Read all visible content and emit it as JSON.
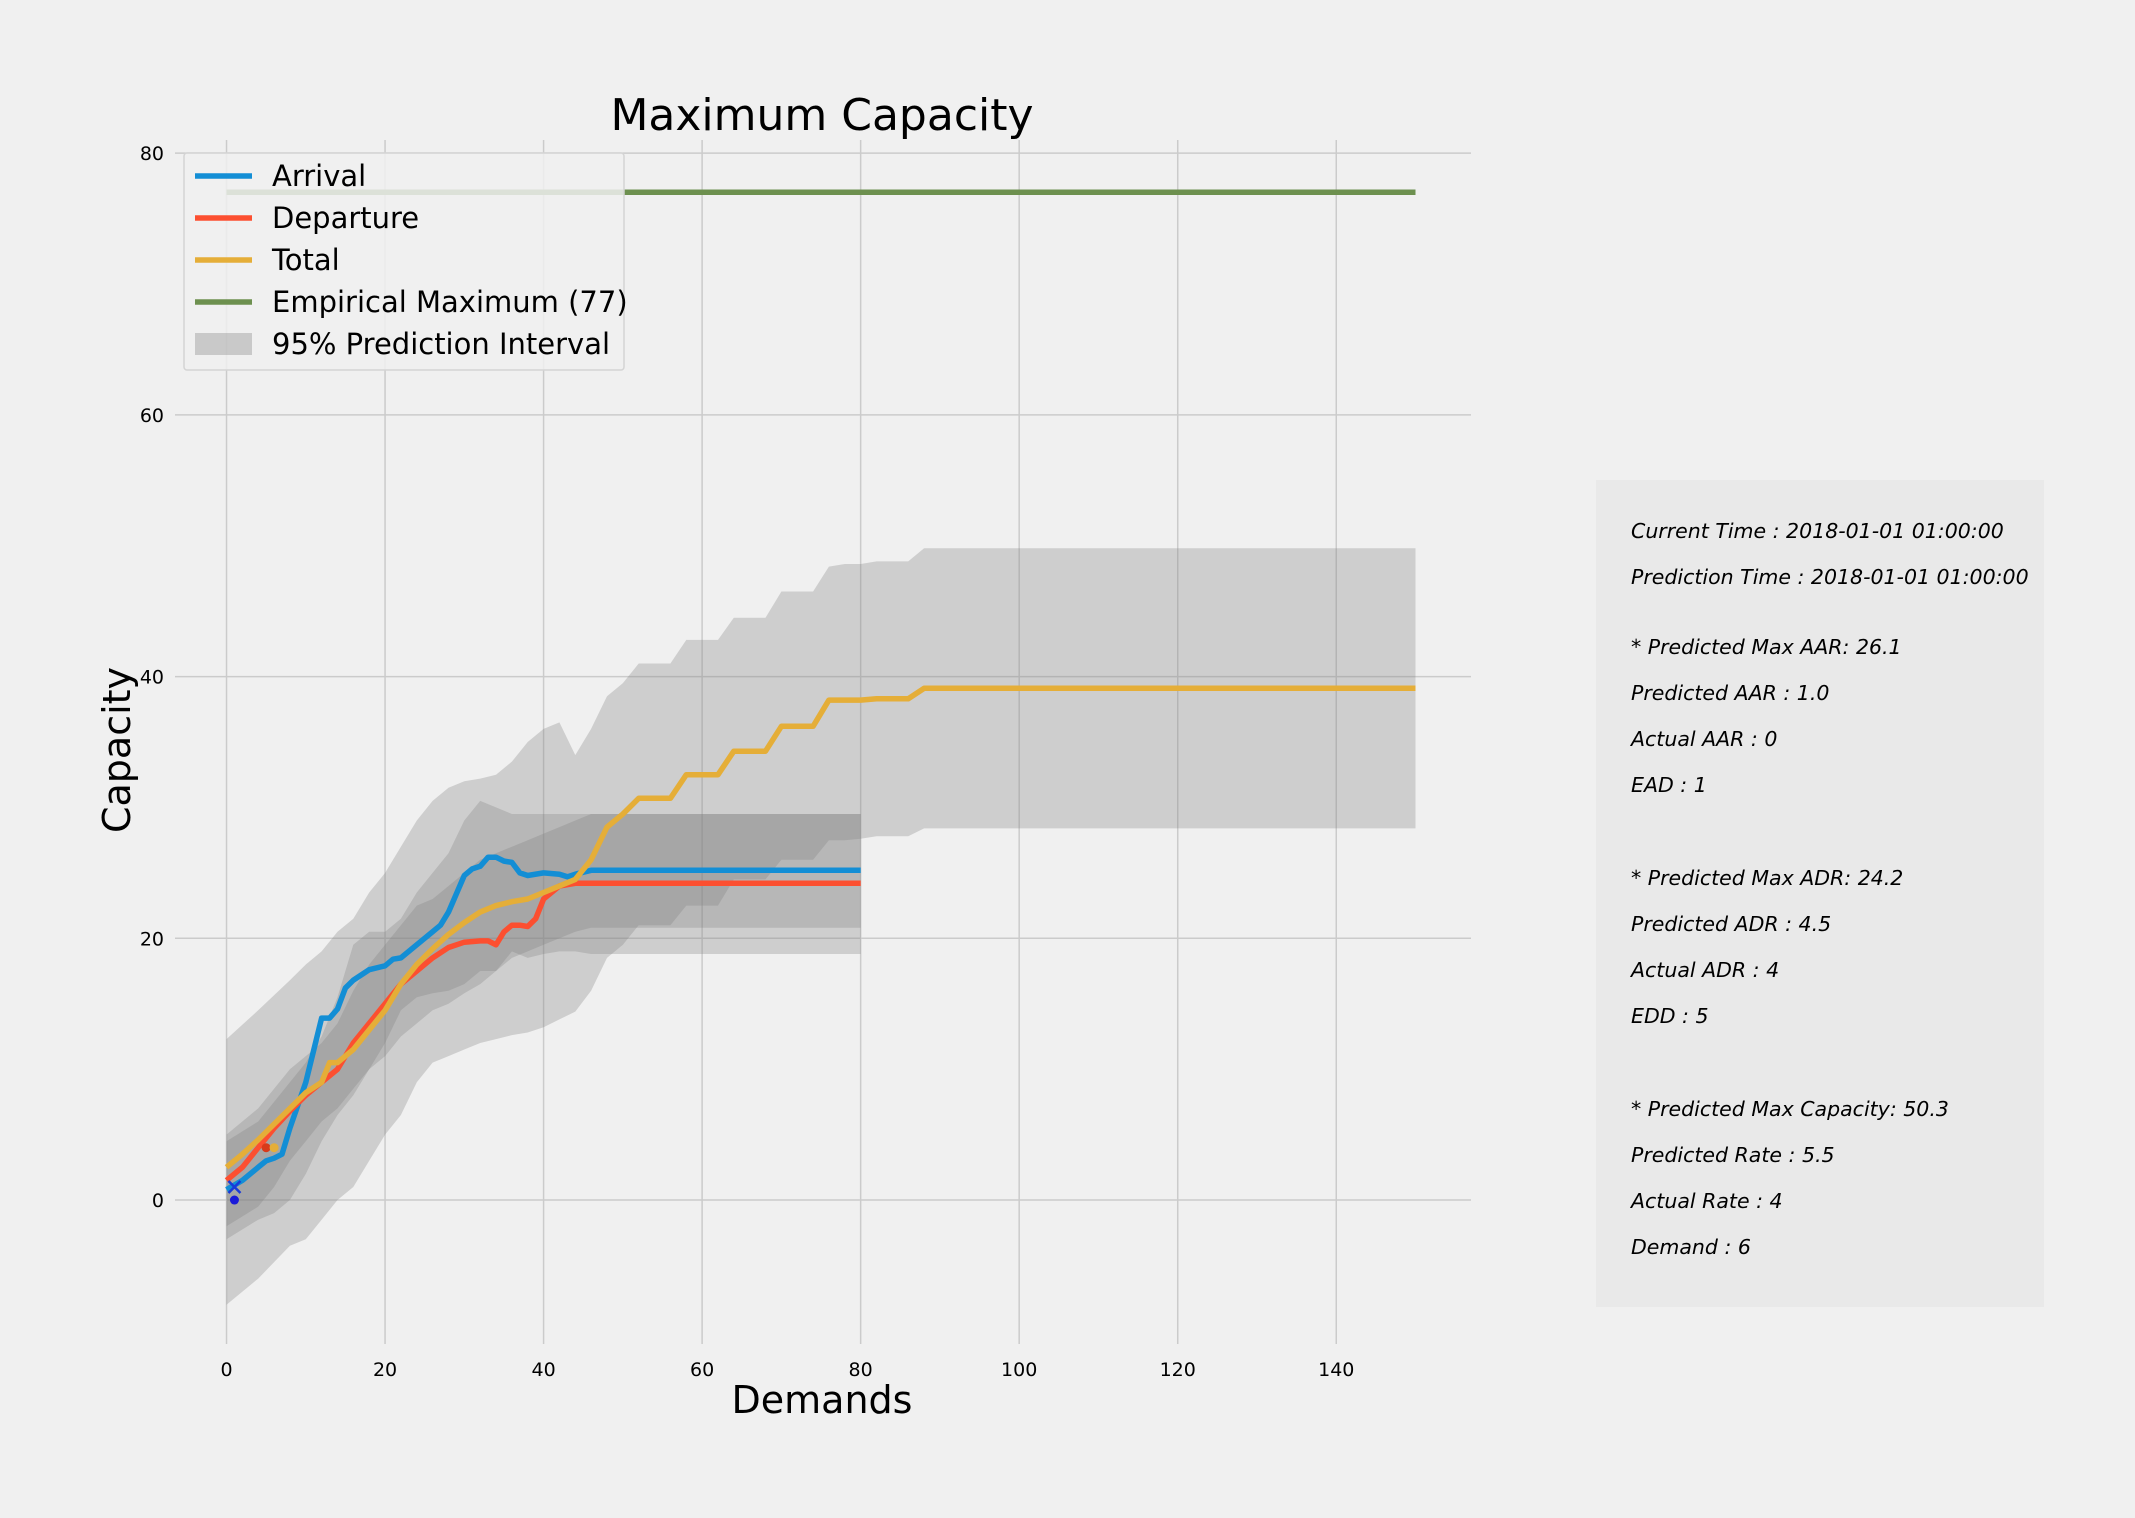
{
  "chart_data": {
    "type": "line",
    "title": "Maximum Capacity",
    "xlabel": "Demands",
    "ylabel": "Capacity",
    "xlim": [
      -6.5,
      157
    ],
    "ylim": [
      -11,
      81
    ],
    "xticks": [
      0,
      20,
      40,
      60,
      80,
      100,
      120,
      140
    ],
    "yticks": [
      0,
      20,
      40,
      60,
      80
    ],
    "grid": true,
    "legend_position": "top-left",
    "series": [
      {
        "name": "Arrival",
        "color": "#138ed5",
        "x": [
          0,
          2,
          4,
          5,
          6,
          7,
          8,
          10,
          12,
          13,
          14,
          15,
          16,
          18,
          20,
          21,
          22,
          24,
          26,
          27,
          28,
          30,
          31,
          32,
          33,
          34,
          35,
          36,
          37,
          38,
          40,
          42,
          43,
          44,
          46,
          80
        ],
        "y": [
          0.8,
          1.5,
          2.5,
          3,
          3.2,
          3.5,
          5.5,
          9,
          13.9,
          13.9,
          14.6,
          16.2,
          16.8,
          17.6,
          17.9,
          18.4,
          18.5,
          19.5,
          20.5,
          21,
          22,
          24.8,
          25.3,
          25.5,
          26.2,
          26.2,
          25.9,
          25.8,
          25,
          24.8,
          25,
          24.9,
          24.7,
          24.9,
          25.2,
          25.2
        ]
      },
      {
        "name": "Departure",
        "color": "#fc4f30",
        "x": [
          0,
          2,
          4,
          6,
          8,
          10,
          12,
          14,
          16,
          18,
          20,
          22,
          24,
          26,
          28,
          30,
          32,
          33,
          34,
          35,
          36,
          37,
          38,
          39,
          40,
          42,
          44,
          46,
          80
        ],
        "y": [
          1.5,
          2.5,
          4,
          5.5,
          6.8,
          8,
          9,
          10,
          12,
          13.5,
          15,
          16.5,
          17.5,
          18.5,
          19.3,
          19.7,
          19.8,
          19.8,
          19.5,
          20.5,
          21,
          21,
          20.9,
          21.5,
          23,
          24,
          24.2,
          24.2,
          24.2
        ]
      },
      {
        "name": "Total",
        "color": "#e5ae38",
        "x": [
          0,
          2,
          4,
          6,
          8,
          10,
          12,
          13,
          14,
          16,
          18,
          20,
          22,
          24,
          26,
          28,
          30,
          32,
          34,
          36,
          38,
          40,
          42,
          44,
          46,
          48,
          50,
          52,
          54,
          56,
          58,
          60,
          62,
          64,
          66,
          68,
          70,
          72,
          74,
          76,
          78,
          80,
          82,
          84,
          86,
          88,
          90,
          150
        ],
        "y": [
          2.5,
          3.5,
          4.6,
          5.8,
          7,
          8.2,
          9,
          10.5,
          10.5,
          11.5,
          13,
          14.5,
          16.5,
          18,
          19.2,
          20.3,
          21.2,
          22,
          22.5,
          22.8,
          23,
          23.5,
          24,
          24.5,
          26,
          28.5,
          29.5,
          30.7,
          30.7,
          30.7,
          32.5,
          32.5,
          32.5,
          34.3,
          34.3,
          34.3,
          36.2,
          36.2,
          36.2,
          38.2,
          38.2,
          38.2,
          38.3,
          38.3,
          38.3,
          39.1,
          39.1,
          39.1
        ]
      },
      {
        "name": "Empirical Maximum (77)",
        "color": "#6d904f",
        "x": [
          0,
          150
        ],
        "y": [
          77,
          77
        ]
      }
    ],
    "prediction_intervals": [
      {
        "name": "95% Prediction Interval",
        "color": "#808080",
        "x": [
          0,
          4,
          8,
          10,
          12,
          14,
          16,
          18,
          20,
          22,
          24,
          26,
          28,
          30,
          32,
          34,
          36,
          38,
          40,
          42,
          44,
          46,
          48,
          50,
          52,
          54,
          56,
          58,
          60,
          62,
          64,
          66,
          68,
          70,
          72,
          74,
          76,
          78,
          80,
          82,
          84,
          86,
          88,
          90,
          150
        ],
        "upper": [
          12.3,
          14.5,
          16.8,
          18,
          19,
          20.5,
          21.5,
          23.5,
          25,
          27,
          29,
          30.5,
          31.5,
          32,
          32.2,
          32.5,
          33.5,
          35,
          36,
          36.5,
          34,
          36,
          38.5,
          39.5,
          41,
          41,
          41,
          42.8,
          42.8,
          42.8,
          44.5,
          44.5,
          44.5,
          46.5,
          46.5,
          46.5,
          48.4,
          48.6,
          48.6,
          48.8,
          48.8,
          48.8,
          49.8,
          49.8,
          49.8
        ],
        "lower": [
          -8,
          -6,
          -3.5,
          -3,
          -1.5,
          0,
          1,
          3,
          5,
          6.5,
          9,
          10.5,
          11,
          11.5,
          12,
          12.3,
          12.6,
          12.8,
          13.2,
          13.8,
          14.4,
          16,
          18.5,
          19.5,
          21,
          21,
          21,
          22.5,
          22.5,
          22.5,
          24.5,
          24.5,
          24.5,
          26,
          26,
          26,
          27.5,
          27.5,
          27.6,
          27.8,
          27.8,
          27.8,
          28.4,
          28.4,
          28.4
        ]
      },
      {
        "color": "#808080",
        "x": [
          0,
          4,
          6,
          8,
          10,
          12,
          14,
          16,
          18,
          20,
          22,
          24,
          26,
          28,
          30,
          32,
          34,
          36,
          38,
          40,
          42,
          44,
          46,
          80
        ],
        "upper": [
          4.5,
          6,
          7.5,
          9,
          10.5,
          12.5,
          15.5,
          19.5,
          20.5,
          20.5,
          21.5,
          23.5,
          25,
          26.5,
          29,
          30.5,
          30,
          29.5,
          29.5,
          29.5,
          29.5,
          29.5,
          29.5,
          29.5
        ],
        "lower": [
          -3,
          -1.5,
          -1,
          0,
          2,
          4.5,
          6.5,
          8,
          10,
          12,
          14.5,
          15.5,
          15.8,
          16,
          16.5,
          17.5,
          17.5,
          19,
          18.5,
          18.8,
          19,
          19,
          18.8,
          18.8
        ]
      },
      {
        "color": "#808080",
        "x": [
          0,
          4,
          6,
          8,
          10,
          12,
          14,
          16,
          18,
          20,
          22,
          24,
          26,
          28,
          30,
          32,
          34,
          36,
          38,
          40,
          42,
          44,
          46,
          80
        ],
        "upper": [
          5,
          7,
          8.5,
          10,
          11,
          12,
          13.5,
          16,
          18,
          19.5,
          21,
          22.5,
          23,
          24,
          25,
          26,
          26.5,
          27,
          27.5,
          28,
          28.5,
          29,
          29.5,
          29.5
        ],
        "lower": [
          -2,
          -0.5,
          1,
          3,
          4.5,
          6,
          7,
          8.5,
          10,
          11,
          12.5,
          13.5,
          14.5,
          15,
          15.8,
          16.5,
          17.5,
          18.5,
          19,
          19.5,
          20,
          20.5,
          20.8,
          20.8
        ]
      }
    ],
    "markers": [
      {
        "shape": "x",
        "x": 1,
        "y": 1,
        "color": "#1a3ad8"
      },
      {
        "shape": "dot",
        "x": 1,
        "y": 0,
        "color": "#1a1ad8"
      },
      {
        "shape": "dot",
        "x": 5,
        "y": 4,
        "color": "#d83a1a"
      },
      {
        "shape": "dot",
        "x": 6,
        "y": 4,
        "color": "#e5ae38"
      }
    ]
  },
  "info_panel": {
    "current_time": "Current Time : 2018-01-01 01:00:00",
    "prediction_time": "Prediction Time : 2018-01-01 01:00:00",
    "max_aar": "* Predicted Max AAR: 26.1",
    "predicted_aar": "Predicted AAR : 1.0",
    "actual_aar": "Actual AAR : 0",
    "ead": "EAD : 1",
    "max_adr": "* Predicted Max ADR: 24.2",
    "predicted_adr": "Predicted ADR : 4.5",
    "actual_adr": "Actual ADR : 4",
    "edd": "EDD : 5",
    "max_capacity": "* Predicted Max Capacity: 50.3",
    "predicted_rate": "Predicted Rate : 5.5",
    "actual_rate": "Actual Rate : 4",
    "demand": "Demand : 6"
  }
}
